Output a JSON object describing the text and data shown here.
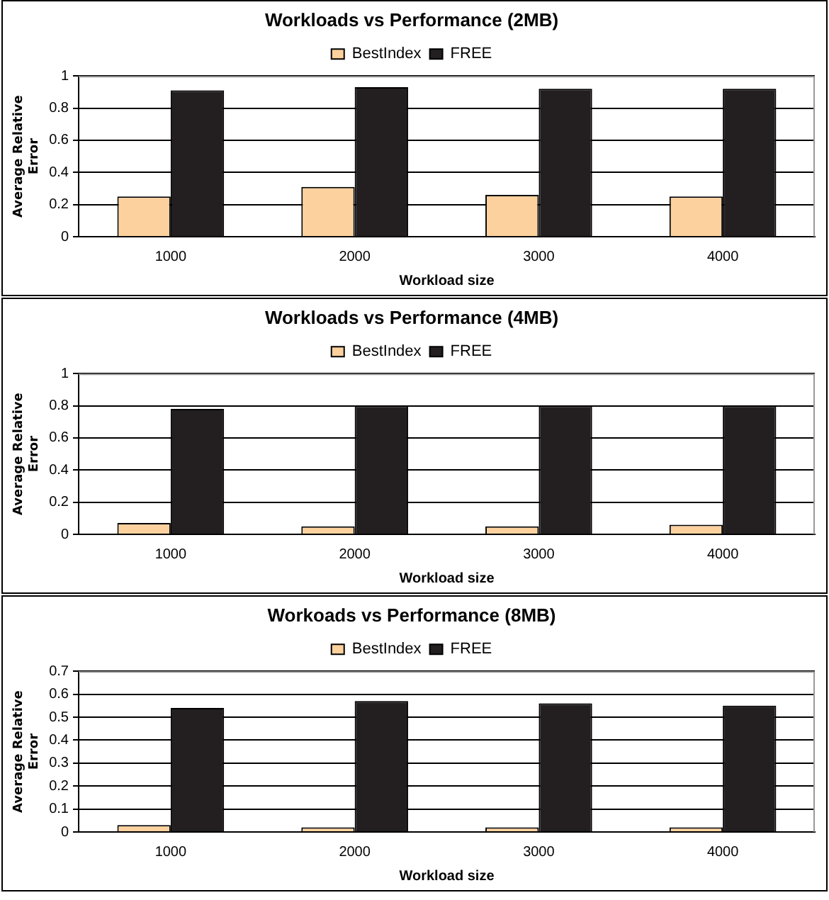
{
  "chart_data": [
    {
      "type": "bar",
      "title": "Workloads vs Performance (2MB)",
      "xlabel": "Workload size",
      "ylabel": "Average Relative Error",
      "categories": [
        "1000",
        "2000",
        "3000",
        "4000"
      ],
      "series": [
        {
          "name": "BestIndex",
          "color": "#fdd19e",
          "values": [
            0.25,
            0.31,
            0.26,
            0.25
          ]
        },
        {
          "name": "FREE",
          "color": "#231f20",
          "values": [
            0.91,
            0.93,
            0.92,
            0.92
          ]
        }
      ],
      "ylim": [
        0,
        1
      ],
      "yticks": [
        0,
        0.2,
        0.4,
        0.6,
        0.8,
        1
      ],
      "grid": "y",
      "legend": "top"
    },
    {
      "type": "bar",
      "title": "Workloads vs Performance (4MB)",
      "xlabel": "Workload size",
      "ylabel": "Average Relative Error",
      "categories": [
        "1000",
        "2000",
        "3000",
        "4000"
      ],
      "series": [
        {
          "name": "BestIndex",
          "color": "#fdd19e",
          "values": [
            0.07,
            0.05,
            0.05,
            0.06
          ]
        },
        {
          "name": "FREE",
          "color": "#231f20",
          "values": [
            0.78,
            0.8,
            0.8,
            0.8
          ]
        }
      ],
      "ylim": [
        0,
        1
      ],
      "yticks": [
        0,
        0.2,
        0.4,
        0.6,
        0.8,
        1
      ],
      "grid": "y",
      "legend": "top"
    },
    {
      "type": "bar",
      "title": "Workoads vs Performance (8MB)",
      "xlabel": "Workload size",
      "ylabel": "Average Relative Error",
      "categories": [
        "1000",
        "2000",
        "3000",
        "4000"
      ],
      "series": [
        {
          "name": "BestIndex",
          "color": "#fdd19e",
          "values": [
            0.03,
            0.02,
            0.02,
            0.02
          ]
        },
        {
          "name": "FREE",
          "color": "#231f20",
          "values": [
            0.54,
            0.57,
            0.56,
            0.55
          ]
        }
      ],
      "ylim": [
        0,
        0.7
      ],
      "yticks": [
        0,
        0.1,
        0.2,
        0.3,
        0.4,
        0.5,
        0.6,
        0.7
      ],
      "grid": "y",
      "legend": "top"
    }
  ]
}
